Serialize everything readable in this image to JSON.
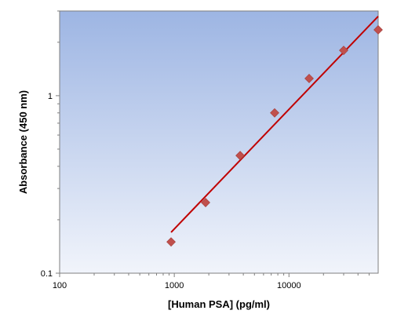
{
  "chart_data": {
    "type": "scatter",
    "title": "",
    "xlabel": "[Human PSA] (pg/ml)",
    "ylabel": "Absorbance (450 nm)",
    "x_scale": "log",
    "y_scale": "log",
    "xlim": [
      100,
      60000
    ],
    "ylim": [
      0.1,
      3
    ],
    "x_ticks": [
      100,
      1000,
      10000
    ],
    "x_tick_labels": [
      "100",
      "1000",
      "10000"
    ],
    "y_ticks": [
      0.1,
      1
    ],
    "y_tick_labels": [
      "0.1",
      "1"
    ],
    "grid": false,
    "legend": "none",
    "series": [
      {
        "kind": "points",
        "marker": "diamond",
        "color": "#c0504d",
        "x": [
          937.5,
          1875,
          3750,
          7500,
          15000,
          30000,
          60000
        ],
        "y": [
          0.15,
          0.25,
          0.46,
          0.8,
          1.25,
          1.8,
          2.35
        ]
      },
      {
        "kind": "fit-line",
        "color": "#c00000",
        "x": [
          937.5,
          60000
        ],
        "y": [
          0.17,
          2.8
        ]
      }
    ],
    "plot_background": {
      "top": "#9db5e3",
      "bottom": "#f1f4fb"
    }
  }
}
